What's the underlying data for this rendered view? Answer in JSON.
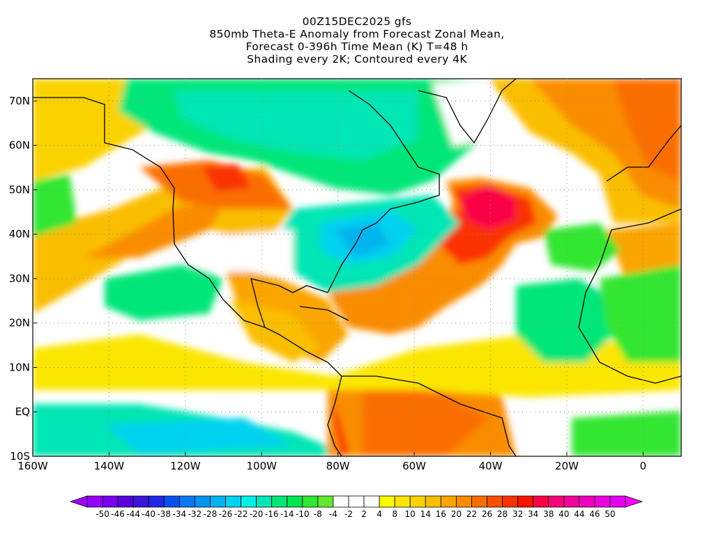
{
  "title": {
    "line1": "00Z15DEC2025 gfs",
    "line2": "850mb Theta-E Anomaly from Forecast Zonal Mean,",
    "line3": "Forecast 0-396h Time Mean (K) T=48 h",
    "line4": "Shading every 2K; Contoured every 4K"
  },
  "map": {
    "lon_range": [
      -160,
      10
    ],
    "lat_range": [
      -10,
      75
    ],
    "lon_ticks": [
      "160W",
      "140W",
      "120W",
      "100W",
      "80W",
      "60W",
      "40W",
      "20W",
      "0"
    ],
    "lat_ticks": [
      "70N",
      "60N",
      "50N",
      "40N",
      "30N",
      "20N",
      "10N",
      "EQ",
      "10S"
    ]
  },
  "colorbar": {
    "colors": [
      "#9600fe",
      "#7800f0",
      "#5a00dc",
      "#3c14dc",
      "#1e28e6",
      "#0a50f0",
      "#0a78f0",
      "#0096f0",
      "#00b4f0",
      "#00d2f0",
      "#00f0e6",
      "#00e6b4",
      "#00e678",
      "#00e650",
      "#32e632",
      "#64e632",
      "#ffffff",
      "#ffffff",
      "#ffffff",
      "#fafa00",
      "#fae600",
      "#fad200",
      "#fabe00",
      "#faa500",
      "#fa8c00",
      "#fa6e00",
      "#fa5000",
      "#fa3200",
      "#fa1400",
      "#fa0046",
      "#fa0078",
      "#f0009b",
      "#f000be",
      "#f000dc",
      "#e600f0"
    ],
    "labels": [
      "-50",
      "-46",
      "-44",
      "-40",
      "-38",
      "-34",
      "-32",
      "-28",
      "-26",
      "-22",
      "-20",
      "-16",
      "-14",
      "-10",
      "-8",
      "-4",
      "-2",
      "2",
      "4",
      "8",
      "10",
      "14",
      "16",
      "20",
      "22",
      "26",
      "28",
      "32",
      "34",
      "38",
      "40",
      "44",
      "46",
      "50"
    ]
  }
}
